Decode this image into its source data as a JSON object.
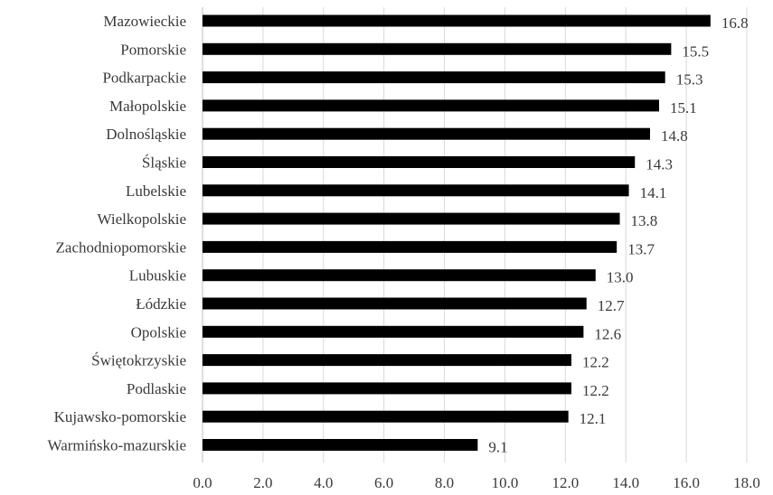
{
  "chart_data": {
    "type": "bar",
    "orientation": "horizontal",
    "categories": [
      "Mazowieckie",
      "Pomorskie",
      "Podkarpackie",
      "Małopolskie",
      "Dolnośląskie",
      "Śląskie",
      "Lubelskie",
      "Wielkopolskie",
      "Zachodniopomorskie",
      "Lubuskie",
      "Łódzkie",
      "Opolskie",
      "Świętokrzyskie",
      "Podlaskie",
      "Kujawsko-pomorskie",
      "Warmińsko-mazurskie"
    ],
    "values": [
      16.8,
      15.5,
      15.3,
      15.1,
      14.8,
      14.3,
      14.1,
      13.8,
      13.7,
      13.0,
      12.7,
      12.6,
      12.2,
      12.2,
      12.1,
      9.1
    ],
    "data_labels": [
      "16.8",
      "15.5",
      "15.3",
      "15.1",
      "14.8",
      "14.3",
      "14.1",
      "13.8",
      "13.7",
      "13.0",
      "12.7",
      "12.6",
      "12.2",
      "12.2",
      "12.1",
      "9.1"
    ],
    "xlim": [
      0,
      18
    ],
    "x_ticks": [
      "0.0",
      "2.0",
      "4.0",
      "6.0",
      "8.0",
      "10.0",
      "12.0",
      "14.0",
      "16.0",
      "18.0"
    ],
    "title": "",
    "xlabel": "",
    "ylabel": "",
    "grid": "vertical",
    "legend": "none",
    "bar_color": "#000000"
  }
}
